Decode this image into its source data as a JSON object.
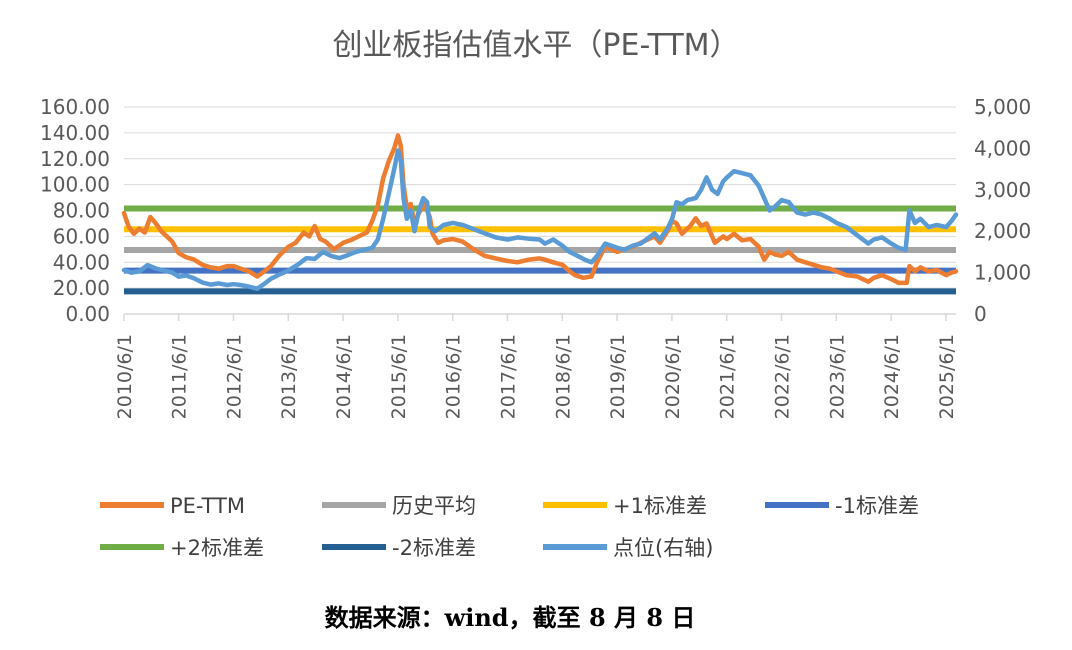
{
  "chart_data": {
    "type": "line",
    "title": "创业板指估值水平（PE-TTM）",
    "source": "数据来源：wind，截至 8 月 8 日",
    "x_tick_labels": [
      "2010/6/1",
      "2011/6/1",
      "2012/6/1",
      "2013/6/1",
      "2014/6/1",
      "2015/6/1",
      "2016/6/1",
      "2017/6/1",
      "2018/6/1",
      "2019/6/1",
      "2020/6/1",
      "2021/6/1",
      "2022/6/1",
      "2023/6/1",
      "2024/6/1",
      "2025/6/1"
    ],
    "x_range": [
      2010.42,
      2025.6
    ],
    "y_left": {
      "ticks": [
        "0.00",
        "20.00",
        "40.00",
        "60.00",
        "80.00",
        "100.00",
        "120.00",
        "140.00",
        "160.00"
      ],
      "ylim": [
        0,
        160
      ]
    },
    "y_right": {
      "ticks": [
        "0",
        "1,000",
        "2,000",
        "3,000",
        "4,000",
        "5,000"
      ],
      "ylim": [
        0,
        5000
      ]
    },
    "colors": {
      "pe": "#ED7D31",
      "mean": "#A5A5A5",
      "plus1": "#FFC000",
      "minus1": "#4472C4",
      "plus2": "#70AD47",
      "minus2": "#255E91",
      "index": "#5B9BD5",
      "grid": "#D9D9D9",
      "axis": "#D9D9D9"
    },
    "reference_lines": [
      {
        "key": "mean",
        "name": "历史平均",
        "value": 49.5
      },
      {
        "key": "plus1",
        "name": "+1标准差",
        "value": 65.5
      },
      {
        "key": "minus1",
        "name": "-1标准差",
        "value": 33.5
      },
      {
        "key": "plus2",
        "name": "+2标准差",
        "value": 81.5
      },
      {
        "key": "minus2",
        "name": "-2标准差",
        "value": 17.5
      }
    ],
    "series": [
      {
        "key": "pe",
        "name": "PE-TTM",
        "axis": "left",
        "points": [
          [
            2010.42,
            78
          ],
          [
            2010.5,
            68
          ],
          [
            2010.6,
            62
          ],
          [
            2010.7,
            66
          ],
          [
            2010.8,
            63
          ],
          [
            2010.9,
            75
          ],
          [
            2011.0,
            70
          ],
          [
            2011.1,
            64
          ],
          [
            2011.2,
            60
          ],
          [
            2011.3,
            56
          ],
          [
            2011.42,
            47
          ],
          [
            2011.55,
            44
          ],
          [
            2011.7,
            42
          ],
          [
            2011.85,
            38
          ],
          [
            2012.0,
            36
          ],
          [
            2012.15,
            35
          ],
          [
            2012.3,
            37
          ],
          [
            2012.42,
            37
          ],
          [
            2012.55,
            35
          ],
          [
            2012.7,
            33
          ],
          [
            2012.85,
            29
          ],
          [
            2012.95,
            32
          ],
          [
            2013.1,
            37
          ],
          [
            2013.25,
            45
          ],
          [
            2013.42,
            52
          ],
          [
            2013.55,
            55
          ],
          [
            2013.7,
            63
          ],
          [
            2013.8,
            60
          ],
          [
            2013.9,
            68
          ],
          [
            2014.0,
            58
          ],
          [
            2014.1,
            56
          ],
          [
            2014.25,
            50
          ],
          [
            2014.42,
            55
          ],
          [
            2014.55,
            57
          ],
          [
            2014.7,
            60
          ],
          [
            2014.85,
            63
          ],
          [
            2014.95,
            72
          ],
          [
            2015.05,
            84
          ],
          [
            2015.15,
            105
          ],
          [
            2015.25,
            118
          ],
          [
            2015.35,
            128
          ],
          [
            2015.42,
            138
          ],
          [
            2015.47,
            130
          ],
          [
            2015.52,
            100
          ],
          [
            2015.58,
            82
          ],
          [
            2015.65,
            85
          ],
          [
            2015.72,
            70
          ],
          [
            2015.8,
            78
          ],
          [
            2015.9,
            85
          ],
          [
            2016.0,
            75
          ],
          [
            2016.05,
            62
          ],
          [
            2016.15,
            55
          ],
          [
            2016.25,
            57
          ],
          [
            2016.42,
            58
          ],
          [
            2016.6,
            56
          ],
          [
            2016.8,
            50
          ],
          [
            2017.0,
            45
          ],
          [
            2017.2,
            43
          ],
          [
            2017.42,
            41
          ],
          [
            2017.6,
            40
          ],
          [
            2017.8,
            42
          ],
          [
            2018.0,
            43
          ],
          [
            2018.1,
            42
          ],
          [
            2018.25,
            40
          ],
          [
            2018.42,
            38
          ],
          [
            2018.55,
            33
          ],
          [
            2018.65,
            30
          ],
          [
            2018.8,
            28
          ],
          [
            2018.95,
            29
          ],
          [
            2019.05,
            40
          ],
          [
            2019.2,
            52
          ],
          [
            2019.42,
            48
          ],
          [
            2019.55,
            50
          ],
          [
            2019.7,
            52
          ],
          [
            2019.85,
            55
          ],
          [
            2020.0,
            58
          ],
          [
            2020.1,
            60
          ],
          [
            2020.2,
            55
          ],
          [
            2020.35,
            65
          ],
          [
            2020.42,
            72
          ],
          [
            2020.5,
            70
          ],
          [
            2020.6,
            62
          ],
          [
            2020.75,
            68
          ],
          [
            2020.85,
            74
          ],
          [
            2020.95,
            68
          ],
          [
            2021.05,
            70
          ],
          [
            2021.2,
            55
          ],
          [
            2021.35,
            60
          ],
          [
            2021.42,
            58
          ],
          [
            2021.55,
            62
          ],
          [
            2021.7,
            57
          ],
          [
            2021.85,
            58
          ],
          [
            2022.0,
            52
          ],
          [
            2022.1,
            42
          ],
          [
            2022.2,
            48
          ],
          [
            2022.3,
            46
          ],
          [
            2022.42,
            45
          ],
          [
            2022.55,
            48
          ],
          [
            2022.7,
            42
          ],
          [
            2022.85,
            40
          ],
          [
            2023.0,
            38
          ],
          [
            2023.15,
            36
          ],
          [
            2023.3,
            35
          ],
          [
            2023.42,
            33
          ],
          [
            2023.6,
            30
          ],
          [
            2023.8,
            29
          ],
          [
            2024.0,
            25
          ],
          [
            2024.1,
            28
          ],
          [
            2024.25,
            30
          ],
          [
            2024.42,
            27
          ],
          [
            2024.55,
            24
          ],
          [
            2024.7,
            24
          ],
          [
            2024.75,
            37
          ],
          [
            2024.85,
            33
          ],
          [
            2024.95,
            36
          ],
          [
            2025.1,
            33
          ],
          [
            2025.25,
            34
          ],
          [
            2025.42,
            30
          ],
          [
            2025.52,
            32
          ],
          [
            2025.6,
            33
          ]
        ]
      },
      {
        "key": "index",
        "name": "点位(右轴)",
        "axis": "right",
        "points": [
          [
            2010.42,
            1060
          ],
          [
            2010.55,
            1000
          ],
          [
            2010.7,
            1030
          ],
          [
            2010.85,
            1180
          ],
          [
            2011.0,
            1100
          ],
          [
            2011.15,
            1050
          ],
          [
            2011.3,
            1000
          ],
          [
            2011.42,
            900
          ],
          [
            2011.55,
            930
          ],
          [
            2011.7,
            860
          ],
          [
            2011.85,
            760
          ],
          [
            2012.0,
            710
          ],
          [
            2012.15,
            740
          ],
          [
            2012.3,
            700
          ],
          [
            2012.42,
            720
          ],
          [
            2012.55,
            700
          ],
          [
            2012.7,
            660
          ],
          [
            2012.85,
            610
          ],
          [
            2012.95,
            700
          ],
          [
            2013.1,
            850
          ],
          [
            2013.25,
            950
          ],
          [
            2013.42,
            1050
          ],
          [
            2013.6,
            1200
          ],
          [
            2013.75,
            1350
          ],
          [
            2013.9,
            1330
          ],
          [
            2014.05,
            1500
          ],
          [
            2014.2,
            1400
          ],
          [
            2014.35,
            1350
          ],
          [
            2014.5,
            1420
          ],
          [
            2014.65,
            1500
          ],
          [
            2014.8,
            1550
          ],
          [
            2014.95,
            1600
          ],
          [
            2015.05,
            1800
          ],
          [
            2015.15,
            2300
          ],
          [
            2015.25,
            2900
          ],
          [
            2015.35,
            3500
          ],
          [
            2015.42,
            3950
          ],
          [
            2015.47,
            3700
          ],
          [
            2015.52,
            2800
          ],
          [
            2015.58,
            2300
          ],
          [
            2015.65,
            2500
          ],
          [
            2015.72,
            2000
          ],
          [
            2015.8,
            2500
          ],
          [
            2015.88,
            2800
          ],
          [
            2015.95,
            2700
          ],
          [
            2016.0,
            2100
          ],
          [
            2016.1,
            2000
          ],
          [
            2016.25,
            2150
          ],
          [
            2016.42,
            2200
          ],
          [
            2016.6,
            2150
          ],
          [
            2016.8,
            2050
          ],
          [
            2017.0,
            1950
          ],
          [
            2017.2,
            1850
          ],
          [
            2017.42,
            1800
          ],
          [
            2017.6,
            1850
          ],
          [
            2017.8,
            1820
          ],
          [
            2018.0,
            1800
          ],
          [
            2018.1,
            1700
          ],
          [
            2018.25,
            1800
          ],
          [
            2018.42,
            1650
          ],
          [
            2018.55,
            1500
          ],
          [
            2018.7,
            1400
          ],
          [
            2018.85,
            1300
          ],
          [
            2018.95,
            1250
          ],
          [
            2019.05,
            1400
          ],
          [
            2019.2,
            1700
          ],
          [
            2019.42,
            1600
          ],
          [
            2019.55,
            1550
          ],
          [
            2019.7,
            1650
          ],
          [
            2019.85,
            1700
          ],
          [
            2020.0,
            1850
          ],
          [
            2020.1,
            1950
          ],
          [
            2020.2,
            1800
          ],
          [
            2020.35,
            2100
          ],
          [
            2020.42,
            2300
          ],
          [
            2020.5,
            2700
          ],
          [
            2020.6,
            2650
          ],
          [
            2020.7,
            2750
          ],
          [
            2020.85,
            2800
          ],
          [
            2020.95,
            3000
          ],
          [
            2021.05,
            3300
          ],
          [
            2021.15,
            3000
          ],
          [
            2021.25,
            2900
          ],
          [
            2021.35,
            3200
          ],
          [
            2021.42,
            3300
          ],
          [
            2021.55,
            3450
          ],
          [
            2021.7,
            3400
          ],
          [
            2021.85,
            3350
          ],
          [
            2022.0,
            3100
          ],
          [
            2022.1,
            2800
          ],
          [
            2022.2,
            2500
          ],
          [
            2022.3,
            2600
          ],
          [
            2022.42,
            2750
          ],
          [
            2022.55,
            2700
          ],
          [
            2022.7,
            2450
          ],
          [
            2022.85,
            2400
          ],
          [
            2023.0,
            2450
          ],
          [
            2023.15,
            2400
          ],
          [
            2023.3,
            2300
          ],
          [
            2023.42,
            2200
          ],
          [
            2023.6,
            2100
          ],
          [
            2023.8,
            1900
          ],
          [
            2024.0,
            1700
          ],
          [
            2024.1,
            1800
          ],
          [
            2024.25,
            1850
          ],
          [
            2024.42,
            1700
          ],
          [
            2024.55,
            1600
          ],
          [
            2024.68,
            1550
          ],
          [
            2024.75,
            2500
          ],
          [
            2024.85,
            2200
          ],
          [
            2024.95,
            2300
          ],
          [
            2025.1,
            2100
          ],
          [
            2025.25,
            2150
          ],
          [
            2025.42,
            2100
          ],
          [
            2025.52,
            2250
          ],
          [
            2025.6,
            2400
          ]
        ]
      }
    ],
    "legend": {
      "placement": "bottom",
      "items": [
        {
          "key": "pe",
          "label": "PE-TTM"
        },
        {
          "key": "mean",
          "label": "历史平均"
        },
        {
          "key": "plus1",
          "label": "+1标准差"
        },
        {
          "key": "minus1",
          "label": "-1标准差"
        },
        {
          "key": "plus2",
          "label": "+2标准差"
        },
        {
          "key": "minus2",
          "label": "-2标准差"
        },
        {
          "key": "index",
          "label": "点位(右轴)"
        }
      ]
    },
    "grid": true
  }
}
